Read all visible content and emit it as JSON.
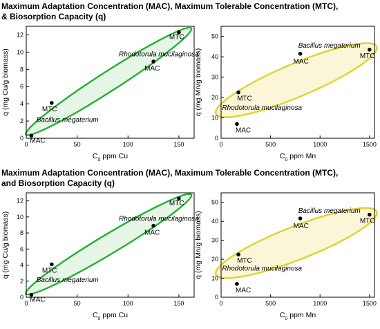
{
  "figure": {
    "title_top_line1": "Maximum Adaptation Concentration (MAC), Maximum Tolerable Concentration (MTC),",
    "title_top_line2": "& Biosorption Capacity (q)",
    "title_bottom_line1": "Maximum Adaptation Concentration (MAC), Maximum Tolerable Concentration (MTC),",
    "title_bottom_line2": "and Biosorption Capacity (q)"
  },
  "chart_data": [
    {
      "type": "scatter",
      "id": "cu-top",
      "xlabel": "C₀ ppm Cu",
      "ylabel": "q (mg Cu/g biomass)",
      "xlim": [
        0,
        165
      ],
      "ylim": [
        0,
        13
      ],
      "xticks": [
        0,
        50,
        100,
        150
      ],
      "yticks": [
        0,
        2,
        4,
        6,
        8,
        10,
        12
      ],
      "colors": {
        "ellipse": "#22b033",
        "fill": "#e6f5e6"
      },
      "points": [
        {
          "label": "MAC",
          "x": 5,
          "y": 0.3
        },
        {
          "label": "MTC",
          "x": 25,
          "y": 4.1
        },
        {
          "label": "MAC",
          "x": 125,
          "y": 8.9
        },
        {
          "label": "MTC",
          "x": 150,
          "y": 12.3
        }
      ],
      "annotations": [
        {
          "text": "Bacillus megaterium",
          "x": 10,
          "y": 1.9
        },
        {
          "text": "Rhodotorula mucilaginosa",
          "x": 91,
          "y": 9.5
        }
      ]
    },
    {
      "type": "scatter",
      "id": "mn-top",
      "xlabel": "C₀ ppm Mn",
      "ylabel": "q (mg Mn/g biomass)",
      "xlim": [
        0,
        1550
      ],
      "ylim": [
        0,
        55
      ],
      "xticks": [
        0,
        500,
        1000,
        1500
      ],
      "yticks": [
        0,
        10,
        20,
        30,
        40,
        50
      ],
      "colors": {
        "ellipse": "#e0d22c",
        "fill": "#fcf6d9"
      },
      "points": [
        {
          "label": "MAC",
          "x": 160,
          "y": 7
        },
        {
          "label": "MTC",
          "x": 175,
          "y": 22.5
        },
        {
          "label": "MAC",
          "x": 800,
          "y": 41.5
        },
        {
          "label": "MTC",
          "x": 1500,
          "y": 43.5
        }
      ],
      "annotations": [
        {
          "text": "Bacillus megaterium",
          "x": 780,
          "y": 44.5
        },
        {
          "text": "Rhodotorula mucilaginosa",
          "x": 10,
          "y": 14
        }
      ]
    },
    {
      "type": "scatter",
      "id": "cu-bottom",
      "xlabel": "C₀ ppm Cu",
      "ylabel": "q (mg Cu/g biomass)",
      "xlim": [
        0,
        165
      ],
      "ylim": [
        0,
        13
      ],
      "xticks": [
        0,
        50,
        100,
        150
      ],
      "yticks": [
        0,
        2,
        4,
        6,
        8,
        10,
        12
      ],
      "colors": {
        "ellipse": "#22b033",
        "fill": "#e6f5e6"
      },
      "points": [
        {
          "label": "MAC",
          "x": 5,
          "y": 0.3
        },
        {
          "label": "MTC",
          "x": 25,
          "y": 4.1
        },
        {
          "label": "MAC",
          "x": 125,
          "y": 8.9
        },
        {
          "label": "MTC",
          "x": 150,
          "y": 12.3
        }
      ],
      "annotations": [
        {
          "text": "Bacillus megaterium",
          "x": 10,
          "y": 1.9
        },
        {
          "text": "Rhodotorula mucilaginosa",
          "x": 91,
          "y": 9.5
        }
      ]
    },
    {
      "type": "scatter",
      "id": "mn-bottom",
      "xlabel": "C₀ ppm Mn",
      "ylabel": "q (mg Mn/g biomass)",
      "xlim": [
        0,
        1550
      ],
      "ylim": [
        0,
        55
      ],
      "xticks": [
        0,
        500,
        1000,
        1500
      ],
      "yticks": [
        0,
        10,
        20,
        30,
        40,
        50
      ],
      "colors": {
        "ellipse": "#e0d22c",
        "fill": "#fcf6d9"
      },
      "points": [
        {
          "label": "MAC",
          "x": 160,
          "y": 7
        },
        {
          "label": "MTC",
          "x": 175,
          "y": 22.5
        },
        {
          "label": "MAC",
          "x": 800,
          "y": 41.5
        },
        {
          "label": "MTC",
          "x": 1500,
          "y": 43.5
        }
      ],
      "annotations": [
        {
          "text": "Bacillus megaterium",
          "x": 780,
          "y": 44.5
        },
        {
          "text": "Rhodotorula mucilaginosa",
          "x": 10,
          "y": 14
        }
      ]
    }
  ]
}
